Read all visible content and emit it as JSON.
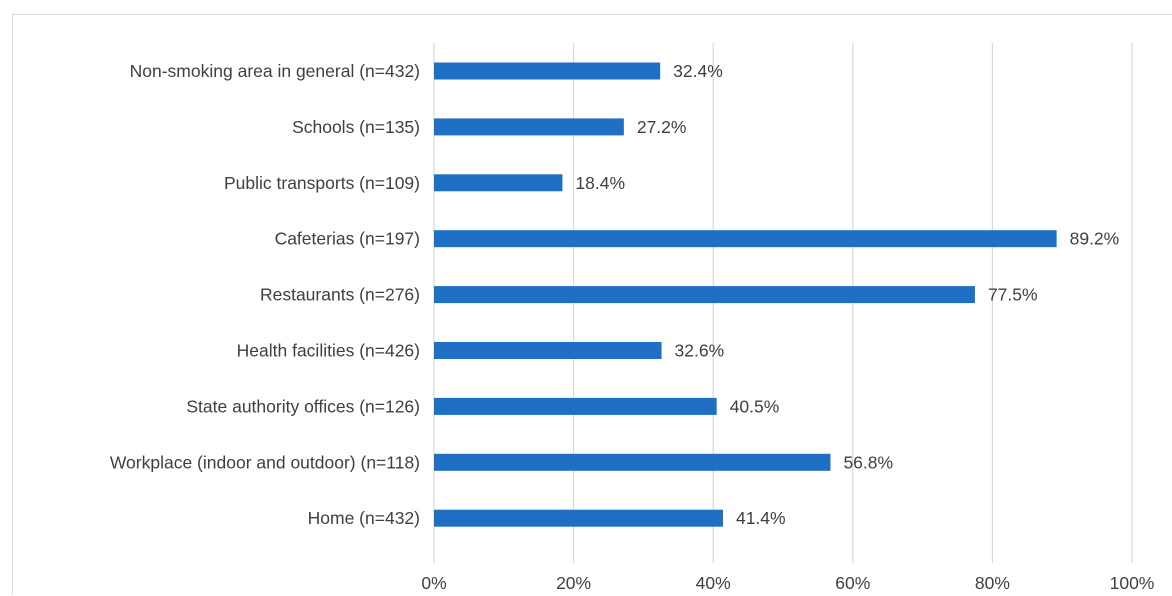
{
  "chart_data": {
    "type": "bar",
    "orientation": "horizontal",
    "categories": [
      "Non-smoking area in general (n=432)",
      "Schools (n=135)",
      "Public transports (n=109)",
      "Cafeterias (n=197)",
      "Restaurants (n=276)",
      "Health facilities (n=426)",
      "State authority offices (n=126)",
      "Workplace (indoor and outdoor) (n=118)",
      "Home (n=432)"
    ],
    "values": [
      32.4,
      27.2,
      18.4,
      89.2,
      77.5,
      32.6,
      40.5,
      56.8,
      41.4
    ],
    "value_labels": [
      "32.4%",
      "27.2%",
      "18.4%",
      "89.2%",
      "77.5%",
      "32.6%",
      "40.5%",
      "56.8%",
      "41.4%"
    ],
    "x_ticks": [
      0,
      20,
      40,
      60,
      80,
      100
    ],
    "x_tick_labels": [
      "0%",
      "20%",
      "40%",
      "60%",
      "80%",
      "100%"
    ],
    "xlim": [
      0,
      100
    ],
    "title": "",
    "xlabel": "",
    "ylabel": "",
    "grid": true,
    "legend": false,
    "bar_color": "#1f6fc5",
    "grid_color": "#d9d9d9",
    "text_color": "#404040"
  }
}
